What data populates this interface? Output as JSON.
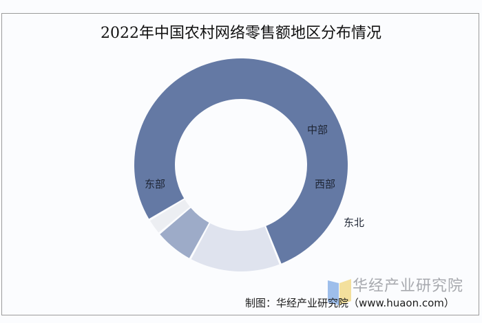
{
  "title": "2022年中国农村网络零售额地区分布情况",
  "chart_data": {
    "type": "pie",
    "subtype": "donut",
    "title": "2022年中国农村网络零售额地区分布情况",
    "categories": [
      "东部",
      "中部",
      "西部",
      "东北"
    ],
    "values": [
      77.6,
      13.9,
      6.0,
      2.5
    ],
    "unit": "%",
    "colors": [
      "#6479a4",
      "#dfe3ee",
      "#9dabc8",
      "#eceef2"
    ],
    "start_angle_deg": -121,
    "legend": "none",
    "data_labels": "category names on slices"
  },
  "labels": {
    "east": "东部",
    "central": "中部",
    "west": "西部",
    "northeast": "东北"
  },
  "watermark": {
    "name": "华经产业研究院",
    "logo_colors": [
      "#8db3e8",
      "#f1da8c"
    ]
  },
  "source": "制图：华经产业研究院（www.huaon.com）"
}
